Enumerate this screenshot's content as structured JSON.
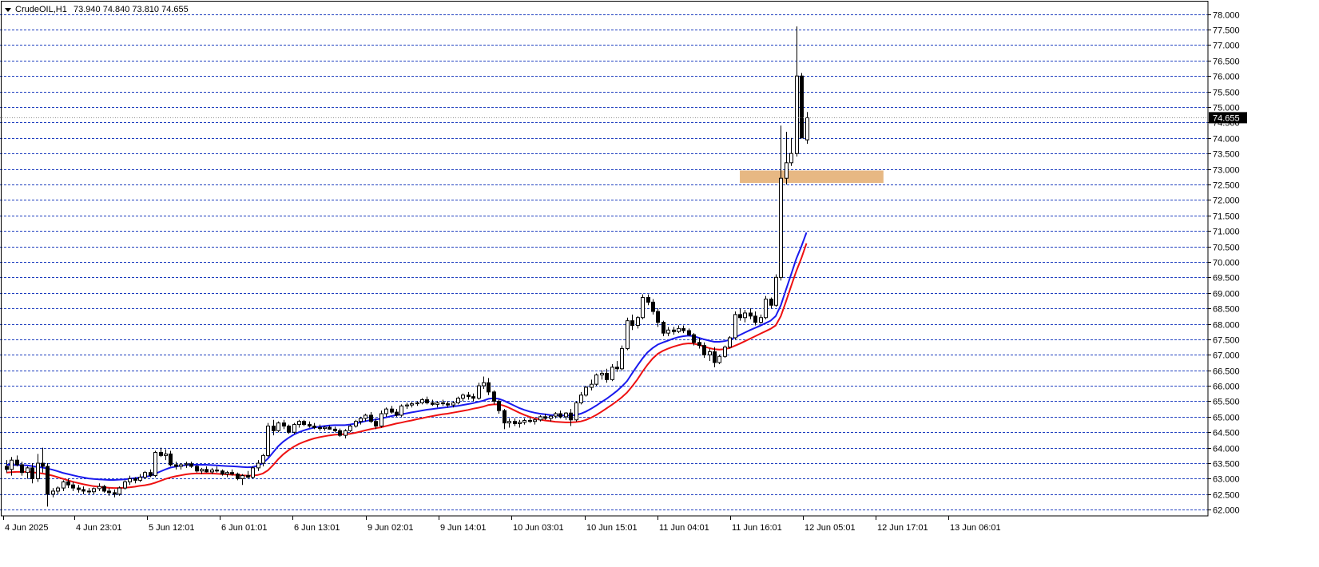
{
  "header": {
    "symbol_timeframe": "CrudeOIL,H1",
    "ohlc_text": "73.940 74.840 73.810 74.655"
  },
  "colors": {
    "grid": "#1f3fbf",
    "up_candle_fill": "#ffffff",
    "down_candle_fill": "#000000",
    "candle_outline": "#000000",
    "ma_fast": "#1a1aee",
    "ma_slow": "#ee1111",
    "zone": "#e7b883",
    "price_marker_bg": "#000000",
    "price_marker_text": "#ffffff"
  },
  "chart_data": {
    "type": "candlestick",
    "symbol": "CrudeOIL",
    "timeframe": "H1",
    "ylim": [
      61.8,
      78.3
    ],
    "y_ticks": [
      "78.000",
      "77.500",
      "77.000",
      "76.500",
      "76.000",
      "75.500",
      "75.000",
      "74.500",
      "74.000",
      "73.500",
      "73.000",
      "72.500",
      "72.000",
      "71.500",
      "71.000",
      "70.500",
      "70.000",
      "69.500",
      "69.000",
      "68.500",
      "68.000",
      "67.500",
      "67.000",
      "66.500",
      "66.000",
      "65.500",
      "65.000",
      "64.500",
      "64.000",
      "63.500",
      "63.000",
      "62.500",
      "62.000"
    ],
    "x_labels": [
      "4 Jun 2025",
      "4 Jun 23:01",
      "5 Jun 12:01",
      "6 Jun 01:01",
      "6 Jun 13:01",
      "9 Jun 02:01",
      "9 Jun 14:01",
      "10 Jun 03:01",
      "10 Jun 15:01",
      "11 Jun 04:01",
      "11 Jun 16:01",
      "12 Jun 05:01",
      "12 Jun 17:01",
      "13 Jun 06:01"
    ],
    "last_price": "74.655",
    "zone": {
      "low": 72.55,
      "high": 72.95,
      "from_index": 143,
      "to_index": 171
    },
    "candles": [
      [
        63.4,
        63.6,
        63.2,
        63.3
      ],
      [
        63.3,
        63.7,
        63.1,
        63.6
      ],
      [
        63.6,
        63.75,
        63.4,
        63.45
      ],
      [
        63.45,
        63.55,
        63.1,
        63.2
      ],
      [
        63.2,
        63.4,
        63.0,
        63.35
      ],
      [
        63.35,
        63.5,
        62.85,
        63.0
      ],
      [
        63.0,
        63.8,
        62.9,
        63.5
      ],
      [
        63.5,
        64.0,
        63.2,
        63.4
      ],
      [
        63.4,
        63.5,
        62.1,
        62.5
      ],
      [
        62.5,
        62.7,
        62.4,
        62.6
      ],
      [
        62.6,
        62.75,
        62.5,
        62.7
      ],
      [
        62.7,
        62.95,
        62.6,
        62.9
      ],
      [
        62.9,
        63.0,
        62.7,
        62.8
      ],
      [
        62.8,
        62.9,
        62.6,
        62.7
      ],
      [
        62.7,
        62.8,
        62.55,
        62.65
      ],
      [
        62.65,
        62.75,
        62.5,
        62.6
      ],
      [
        62.6,
        62.7,
        62.5,
        62.58
      ],
      [
        62.58,
        62.72,
        62.5,
        62.68
      ],
      [
        62.68,
        62.85,
        62.6,
        62.75
      ],
      [
        62.75,
        62.8,
        62.55,
        62.6
      ],
      [
        62.6,
        62.7,
        62.45,
        62.55
      ],
      [
        62.55,
        62.65,
        62.4,
        62.5
      ],
      [
        62.5,
        62.75,
        62.45,
        62.7
      ],
      [
        62.7,
        62.95,
        62.65,
        62.9
      ],
      [
        62.9,
        63.1,
        62.8,
        63.0
      ],
      [
        63.0,
        63.05,
        62.85,
        62.95
      ],
      [
        62.95,
        63.15,
        62.9,
        63.05
      ],
      [
        63.05,
        63.25,
        63.0,
        63.2
      ],
      [
        63.2,
        63.3,
        63.05,
        63.1
      ],
      [
        63.1,
        63.9,
        63.05,
        63.85
      ],
      [
        63.85,
        64.0,
        63.7,
        63.75
      ],
      [
        63.75,
        63.95,
        63.6,
        63.8
      ],
      [
        63.8,
        63.9,
        63.4,
        63.45
      ],
      [
        63.45,
        63.55,
        63.3,
        63.4
      ],
      [
        63.4,
        63.5,
        63.3,
        63.45
      ],
      [
        63.45,
        63.55,
        63.35,
        63.48
      ],
      [
        63.48,
        63.55,
        63.35,
        63.4
      ],
      [
        63.4,
        63.45,
        63.2,
        63.25
      ],
      [
        63.25,
        63.35,
        63.15,
        63.3
      ],
      [
        63.3,
        63.4,
        63.2,
        63.22
      ],
      [
        63.22,
        63.35,
        63.15,
        63.28
      ],
      [
        63.28,
        63.4,
        63.2,
        63.25
      ],
      [
        63.25,
        63.3,
        63.1,
        63.15
      ],
      [
        63.15,
        63.25,
        63.05,
        63.2
      ],
      [
        63.2,
        63.3,
        63.1,
        63.15
      ],
      [
        63.15,
        63.2,
        62.95,
        63.0
      ],
      [
        63.0,
        63.15,
        62.8,
        63.1
      ],
      [
        63.1,
        63.25,
        63.0,
        63.05
      ],
      [
        63.05,
        63.4,
        63.0,
        63.35
      ],
      [
        63.35,
        63.6,
        63.25,
        63.5
      ],
      [
        63.5,
        63.8,
        63.4,
        63.75
      ],
      [
        63.75,
        64.8,
        63.7,
        64.7
      ],
      [
        64.7,
        64.9,
        64.4,
        64.55
      ],
      [
        64.55,
        64.85,
        64.5,
        64.8
      ],
      [
        64.8,
        64.9,
        64.6,
        64.7
      ],
      [
        64.7,
        64.75,
        64.45,
        64.5
      ],
      [
        64.5,
        64.8,
        64.45,
        64.75
      ],
      [
        64.75,
        64.9,
        64.65,
        64.85
      ],
      [
        64.85,
        64.9,
        64.7,
        64.75
      ],
      [
        64.75,
        64.85,
        64.65,
        64.7
      ],
      [
        64.7,
        64.8,
        64.6,
        64.65
      ],
      [
        64.65,
        64.75,
        64.55,
        64.62
      ],
      [
        64.62,
        64.7,
        64.55,
        64.66
      ],
      [
        64.66,
        64.72,
        64.58,
        64.6
      ],
      [
        64.6,
        64.68,
        64.5,
        64.55
      ],
      [
        64.55,
        64.62,
        64.35,
        64.4
      ],
      [
        64.4,
        64.6,
        64.3,
        64.55
      ],
      [
        64.55,
        64.75,
        64.5,
        64.7
      ],
      [
        64.7,
        64.9,
        64.65,
        64.85
      ],
      [
        64.85,
        65.0,
        64.75,
        64.95
      ],
      [
        64.95,
        65.1,
        64.85,
        65.05
      ],
      [
        65.05,
        65.15,
        64.8,
        64.85
      ],
      [
        64.85,
        64.95,
        64.6,
        64.7
      ],
      [
        64.7,
        65.2,
        64.65,
        65.1
      ],
      [
        65.1,
        65.3,
        65.0,
        65.25
      ],
      [
        65.25,
        65.35,
        65.1,
        65.15
      ],
      [
        65.15,
        65.25,
        65.0,
        65.05
      ],
      [
        65.05,
        65.4,
        65.0,
        65.35
      ],
      [
        65.35,
        65.45,
        65.25,
        65.38
      ],
      [
        65.38,
        65.48,
        65.3,
        65.42
      ],
      [
        65.42,
        65.5,
        65.35,
        65.45
      ],
      [
        65.45,
        65.6,
        65.4,
        65.55
      ],
      [
        65.55,
        65.65,
        65.4,
        65.45
      ],
      [
        65.45,
        65.55,
        65.35,
        65.4
      ],
      [
        65.4,
        65.5,
        65.3,
        65.45
      ],
      [
        65.45,
        65.55,
        65.35,
        65.42
      ],
      [
        65.42,
        65.5,
        65.3,
        65.38
      ],
      [
        65.38,
        65.5,
        65.3,
        65.45
      ],
      [
        65.45,
        65.65,
        65.4,
        65.6
      ],
      [
        65.6,
        65.75,
        65.5,
        65.7
      ],
      [
        65.7,
        65.8,
        65.55,
        65.65
      ],
      [
        65.65,
        65.75,
        65.5,
        65.6
      ],
      [
        65.6,
        66.1,
        65.55,
        66.0
      ],
      [
        66.0,
        66.3,
        65.9,
        66.1
      ],
      [
        66.1,
        66.25,
        65.7,
        65.8
      ],
      [
        65.8,
        65.85,
        65.4,
        65.5
      ],
      [
        65.5,
        65.55,
        65.1,
        65.2
      ],
      [
        65.2,
        65.25,
        64.6,
        64.8
      ],
      [
        64.8,
        64.95,
        64.65,
        64.85
      ],
      [
        64.85,
        64.95,
        64.7,
        64.78
      ],
      [
        64.78,
        64.9,
        64.65,
        64.82
      ],
      [
        64.82,
        64.95,
        64.75,
        64.88
      ],
      [
        64.88,
        64.98,
        64.8,
        64.85
      ],
      [
        64.85,
        64.95,
        64.75,
        64.9
      ],
      [
        64.9,
        65.05,
        64.85,
        65.0
      ],
      [
        65.0,
        65.1,
        64.9,
        64.95
      ],
      [
        64.95,
        65.05,
        64.85,
        65.02
      ],
      [
        65.02,
        65.15,
        64.95,
        65.1
      ],
      [
        65.1,
        65.2,
        64.95,
        65.0
      ],
      [
        65.0,
        65.15,
        64.9,
        65.12
      ],
      [
        65.12,
        65.25,
        64.7,
        64.9
      ],
      [
        64.9,
        65.5,
        64.85,
        65.45
      ],
      [
        65.45,
        65.8,
        65.4,
        65.7
      ],
      [
        65.7,
        66.0,
        65.65,
        65.95
      ],
      [
        65.95,
        66.2,
        65.85,
        66.05
      ],
      [
        66.05,
        66.4,
        66.0,
        66.35
      ],
      [
        66.35,
        66.5,
        66.2,
        66.4
      ],
      [
        66.4,
        66.55,
        66.1,
        66.2
      ],
      [
        66.2,
        66.7,
        66.15,
        66.6
      ],
      [
        66.6,
        66.8,
        66.45,
        66.55
      ],
      [
        66.55,
        67.3,
        66.5,
        67.2
      ],
      [
        67.2,
        68.2,
        67.15,
        68.1
      ],
      [
        68.1,
        68.3,
        67.8,
        67.95
      ],
      [
        67.95,
        68.25,
        67.85,
        68.2
      ],
      [
        68.2,
        68.95,
        68.15,
        68.85
      ],
      [
        68.85,
        68.95,
        68.6,
        68.7
      ],
      [
        68.7,
        68.8,
        68.3,
        68.4
      ],
      [
        68.4,
        68.5,
        67.9,
        68.05
      ],
      [
        68.05,
        68.1,
        67.6,
        67.7
      ],
      [
        67.7,
        67.9,
        67.6,
        67.8
      ],
      [
        67.8,
        67.9,
        67.65,
        67.75
      ],
      [
        67.75,
        67.95,
        67.7,
        67.85
      ],
      [
        67.85,
        67.95,
        67.7,
        67.78
      ],
      [
        67.78,
        67.85,
        67.6,
        67.65
      ],
      [
        67.65,
        67.7,
        67.3,
        67.4
      ],
      [
        67.4,
        67.55,
        67.2,
        67.3
      ],
      [
        67.3,
        67.4,
        66.9,
        67.0
      ],
      [
        67.0,
        67.2,
        66.8,
        67.1
      ],
      [
        67.1,
        67.25,
        66.6,
        66.75
      ],
      [
        66.75,
        67.0,
        66.7,
        66.95
      ],
      [
        66.95,
        67.3,
        66.9,
        67.25
      ],
      [
        67.25,
        67.6,
        67.2,
        67.55
      ],
      [
        67.55,
        68.4,
        67.5,
        68.3
      ],
      [
        68.3,
        68.5,
        68.1,
        68.2
      ],
      [
        68.2,
        68.45,
        68.05,
        68.35
      ],
      [
        68.35,
        68.5,
        68.15,
        68.25
      ],
      [
        68.25,
        68.4,
        67.95,
        68.05
      ],
      [
        68.05,
        68.3,
        68.0,
        68.2
      ],
      [
        68.2,
        68.9,
        68.15,
        68.8
      ],
      [
        68.8,
        68.85,
        68.5,
        68.6
      ],
      [
        68.6,
        69.6,
        68.55,
        69.5
      ],
      [
        69.5,
        74.4,
        69.4,
        72.7
      ],
      [
        72.7,
        74.2,
        72.5,
        73.2
      ],
      [
        73.2,
        74.0,
        73.1,
        73.5
      ],
      [
        73.5,
        77.6,
        73.4,
        76.0
      ],
      [
        76.0,
        76.1,
        74.0,
        74.0
      ],
      [
        73.94,
        74.84,
        73.81,
        74.655
      ]
    ],
    "ma_fast": [
      63.45,
      63.45,
      63.44,
      63.44,
      63.43,
      63.41,
      63.38,
      63.36,
      63.33,
      63.29,
      63.24,
      63.19,
      63.15,
      63.11,
      63.07,
      63.04,
      63.01,
      62.99,
      62.98,
      62.97,
      62.96,
      62.96,
      62.97,
      62.98,
      63.0,
      63.02,
      63.04,
      63.06,
      63.09,
      63.16,
      63.23,
      63.3,
      63.36,
      63.39,
      63.42,
      63.44,
      63.45,
      63.45,
      63.45,
      63.45,
      63.44,
      63.43,
      63.42,
      63.41,
      63.4,
      63.39,
      63.38,
      63.37,
      63.38,
      63.42,
      63.5,
      63.65,
      63.85,
      64.05,
      64.2,
      64.32,
      64.42,
      64.5,
      64.56,
      64.61,
      64.65,
      64.68,
      64.7,
      64.72,
      64.73,
      64.73,
      64.73,
      64.75,
      64.78,
      64.82,
      64.86,
      64.89,
      64.91,
      64.94,
      64.98,
      65.02,
      65.05,
      65.08,
      65.11,
      65.14,
      65.17,
      65.2,
      65.23,
      65.25,
      65.27,
      65.29,
      65.31,
      65.33,
      65.35,
      65.38,
      65.41,
      65.44,
      65.48,
      65.52,
      65.58,
      65.6,
      65.58,
      65.52,
      65.44,
      65.36,
      65.28,
      65.22,
      65.17,
      65.13,
      65.1,
      65.08,
      65.06,
      65.05,
      65.04,
      65.04,
      65.04,
      65.06,
      65.1,
      65.17,
      65.26,
      65.36,
      65.47,
      65.58,
      65.7,
      65.83,
      65.98,
      66.15,
      66.4,
      66.65,
      66.88,
      67.08,
      67.22,
      67.33,
      67.4,
      67.46,
      67.52,
      67.57,
      67.6,
      67.62,
      67.6,
      67.55,
      67.5,
      67.46,
      67.42,
      67.42,
      67.44,
      67.48,
      67.56,
      67.64,
      67.72,
      67.8,
      67.87,
      67.94,
      68.02,
      68.1,
      68.25,
      68.6,
      69.1,
      69.6,
      70.1,
      70.5,
      70.95
    ],
    "ma_slow": [
      63.2,
      63.21,
      63.22,
      63.22,
      63.22,
      63.21,
      63.19,
      63.17,
      63.14,
      63.1,
      63.05,
      63.0,
      62.95,
      62.9,
      62.86,
      62.82,
      62.79,
      62.76,
      62.74,
      62.72,
      62.71,
      62.7,
      62.7,
      62.71,
      62.72,
      62.74,
      62.77,
      62.79,
      62.82,
      62.87,
      62.93,
      62.99,
      63.04,
      63.08,
      63.11,
      63.14,
      63.16,
      63.17,
      63.17,
      63.17,
      63.17,
      63.16,
      63.15,
      63.14,
      63.13,
      63.12,
      63.11,
      63.1,
      63.1,
      63.12,
      63.17,
      63.27,
      63.44,
      63.63,
      63.79,
      63.92,
      64.03,
      64.12,
      64.19,
      64.25,
      64.3,
      64.34,
      64.37,
      64.4,
      64.42,
      64.43,
      64.44,
      64.45,
      64.48,
      64.52,
      64.56,
      64.6,
      64.63,
      64.66,
      64.7,
      64.74,
      64.78,
      64.81,
      64.85,
      64.88,
      64.92,
      64.95,
      64.99,
      65.02,
      65.05,
      65.08,
      65.1,
      65.13,
      65.16,
      65.19,
      65.22,
      65.26,
      65.29,
      65.33,
      65.38,
      65.4,
      65.4,
      65.36,
      65.29,
      65.21,
      65.13,
      65.06,
      65.0,
      64.95,
      64.91,
      64.88,
      64.86,
      64.84,
      64.83,
      64.82,
      64.82,
      64.83,
      64.85,
      64.9,
      64.97,
      65.06,
      65.16,
      65.27,
      65.38,
      65.5,
      65.63,
      65.78,
      65.98,
      66.2,
      66.45,
      66.68,
      66.88,
      67.03,
      67.13,
      67.2,
      67.26,
      67.31,
      67.35,
      67.37,
      67.36,
      67.32,
      67.27,
      67.22,
      67.18,
      67.17,
      67.18,
      67.22,
      67.29,
      67.36,
      67.44,
      67.52,
      67.6,
      67.68,
      67.76,
      67.84,
      67.95,
      68.25,
      68.72,
      69.22,
      69.7,
      70.12,
      70.6
    ]
  }
}
